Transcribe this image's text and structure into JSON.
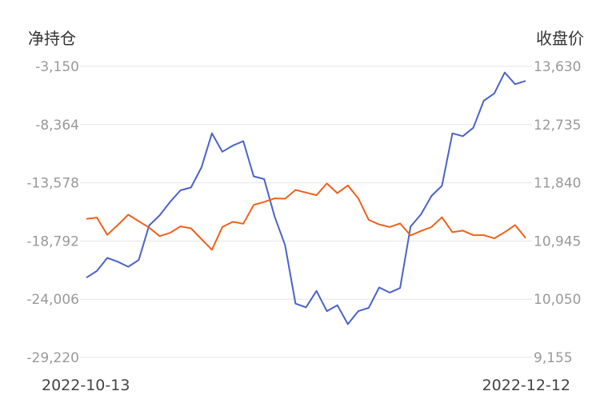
{
  "chart_data": {
    "type": "line",
    "left_axis_label": "净持仓",
    "right_axis_label": "收盘价",
    "left_ticks": [
      "-3,150",
      "-8,364",
      "-13,578",
      "-18,792",
      "-24,006",
      "-29,220"
    ],
    "right_ticks": [
      "13,630",
      "12,735",
      "11,840",
      "10,945",
      "10,050",
      "9,155"
    ],
    "left_range": [
      -29220,
      -3150
    ],
    "right_range": [
      9155,
      13630
    ],
    "x_start_label": "2022-10-13",
    "x_end_label": "2022-12-12",
    "grid": "horizontal",
    "series": [
      {
        "axis": "left",
        "color": "#4a63c8",
        "values": [
          -22070,
          -21480,
          -20300,
          -20650,
          -21100,
          -20500,
          -17400,
          -16500,
          -15300,
          -14250,
          -14000,
          -12200,
          -9150,
          -10800,
          -10250,
          -9850,
          -13000,
          -13250,
          -16600,
          -19180,
          -24400,
          -24740,
          -23260,
          -25070,
          -24540,
          -26240,
          -25070,
          -24780,
          -22950,
          -23410,
          -23000,
          -17500,
          -16400,
          -14750,
          -13850,
          -9150,
          -9400,
          -8650,
          -6230,
          -5580,
          -3700,
          -4750,
          -4450
        ]
      },
      {
        "axis": "right",
        "color": "#f0601a",
        "values": [
          11285,
          11305,
          11040,
          11190,
          11350,
          11250,
          11150,
          11020,
          11070,
          11170,
          11140,
          10975,
          10810,
          11160,
          11240,
          11210,
          11500,
          11545,
          11600,
          11595,
          11730,
          11690,
          11650,
          11830,
          11680,
          11800,
          11600,
          11270,
          11200,
          11160,
          11215,
          11030,
          11100,
          11160,
          11310,
          11080,
          11105,
          11035,
          11035,
          10985,
          11080,
          11190,
          10990
        ]
      }
    ]
  }
}
